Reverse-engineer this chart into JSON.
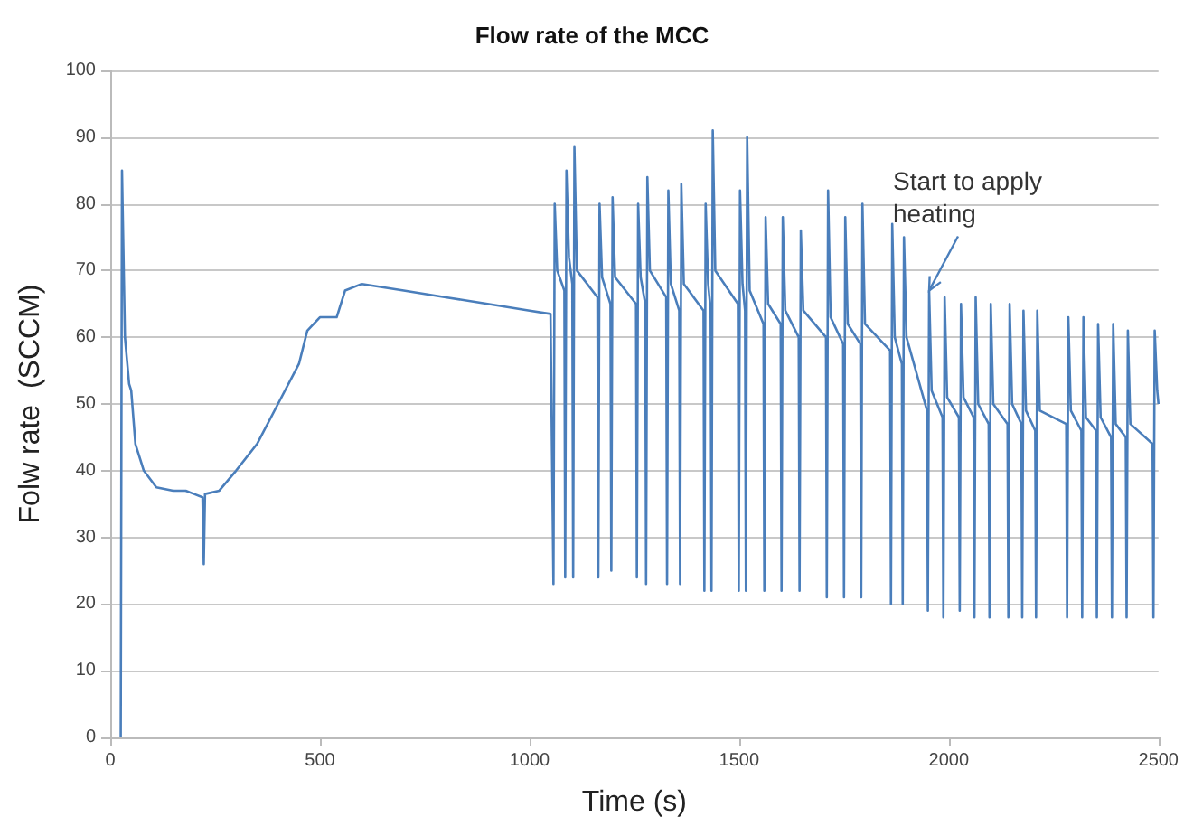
{
  "chart_data": {
    "type": "line",
    "title": "Flow rate of the MCC",
    "xlabel": "Time (s)",
    "ylabel": "Folw rate  (SCCM)",
    "annotations": [
      {
        "text": "Start to apply heating",
        "x": 1953,
        "y": 67
      }
    ],
    "xlim": [
      0,
      2500
    ],
    "xticks": [
      0,
      500,
      1000,
      1500,
      2000,
      2500
    ],
    "ylim": [
      0,
      100
    ],
    "yticks": [
      0,
      10,
      20,
      30,
      40,
      50,
      60,
      70,
      80,
      90,
      100
    ],
    "grid": "y",
    "marker": "none",
    "line_style": "solid",
    "series": [
      {
        "color": "#4a7ebb",
        "x": [
          25,
          28,
          35,
          45,
          50,
          60,
          80,
          110,
          150,
          180,
          200,
          220,
          223,
          226,
          260,
          300,
          350,
          400,
          450,
          470,
          500,
          540,
          560,
          600,
          700,
          800,
          900,
          1000,
          1050,
          1057,
          1060,
          1066,
          1083,
          1085,
          1088,
          1094,
          1102,
          1104,
          1107,
          1113,
          1162,
          1164,
          1167,
          1173,
          1193,
          1195,
          1198,
          1204,
          1254,
          1256,
          1259,
          1265,
          1276,
          1278,
          1281,
          1287,
          1326,
          1328,
          1331,
          1337,
          1357,
          1359,
          1362,
          1368,
          1415,
          1417,
          1420,
          1426,
          1432,
          1434,
          1437,
          1443,
          1497,
          1499,
          1502,
          1508,
          1514,
          1516,
          1519,
          1525,
          1558,
          1560,
          1563,
          1569,
          1599,
          1601,
          1604,
          1610,
          1642,
          1644,
          1647,
          1653,
          1707,
          1709,
          1712,
          1718,
          1748,
          1750,
          1753,
          1759,
          1789,
          1791,
          1794,
          1800,
          1860,
          1862,
          1865,
          1871,
          1888,
          1890,
          1893,
          1899,
          1948,
          1950,
          1953,
          1959,
          1985,
          1987,
          1990,
          1996,
          2024,
          2026,
          2029,
          2035,
          2059,
          2061,
          2064,
          2070,
          2095,
          2097,
          2100,
          2106,
          2140,
          2142,
          2145,
          2151,
          2173,
          2175,
          2178,
          2184,
          2206,
          2208,
          2211,
          2217,
          2280,
          2282,
          2285,
          2291,
          2316,
          2318,
          2321,
          2327,
          2351,
          2353,
          2356,
          2362,
          2387,
          2389,
          2392,
          2398,
          2422,
          2424,
          2427,
          2433,
          2486,
          2488,
          2491,
          2497,
          2500
        ],
        "values": [
          0,
          85,
          60,
          53,
          52,
          44,
          40,
          37.5,
          37,
          37,
          36.5,
          36,
          26,
          36.5,
          37,
          40,
          44,
          50,
          56,
          61,
          63,
          63,
          67,
          68,
          67,
          66,
          65,
          64,
          63.5,
          23,
          80,
          70,
          67,
          24,
          85,
          72,
          68,
          24,
          88.5,
          70,
          66,
          24,
          80,
          69,
          65,
          25,
          81,
          69,
          65,
          24,
          80,
          69,
          65,
          23,
          84,
          70,
          66,
          23,
          82,
          68,
          64,
          23,
          83,
          68,
          64,
          22,
          80,
          68,
          64,
          22,
          91,
          70,
          65,
          22,
          82,
          68,
          64,
          22,
          90,
          67,
          62,
          22,
          78,
          65,
          62,
          22,
          78,
          64,
          60,
          22,
          76,
          64,
          60,
          21,
          82,
          63,
          59,
          21,
          78,
          62,
          59,
          21,
          80,
          62,
          58,
          20,
          77,
          60,
          56,
          20,
          75,
          60,
          49,
          19,
          67,
          52,
          48,
          18,
          66,
          51,
          48,
          19,
          65,
          51,
          48,
          18,
          66,
          50,
          47,
          18,
          65,
          50,
          47,
          18,
          65,
          50,
          47,
          18,
          64,
          49,
          46,
          18,
          64,
          49,
          47,
          18,
          63,
          49,
          46,
          18,
          63,
          48,
          46,
          18,
          62,
          48,
          45,
          18,
          62,
          47,
          45,
          18,
          61,
          47,
          44,
          18,
          61,
          52,
          50
        ]
      }
    ]
  }
}
